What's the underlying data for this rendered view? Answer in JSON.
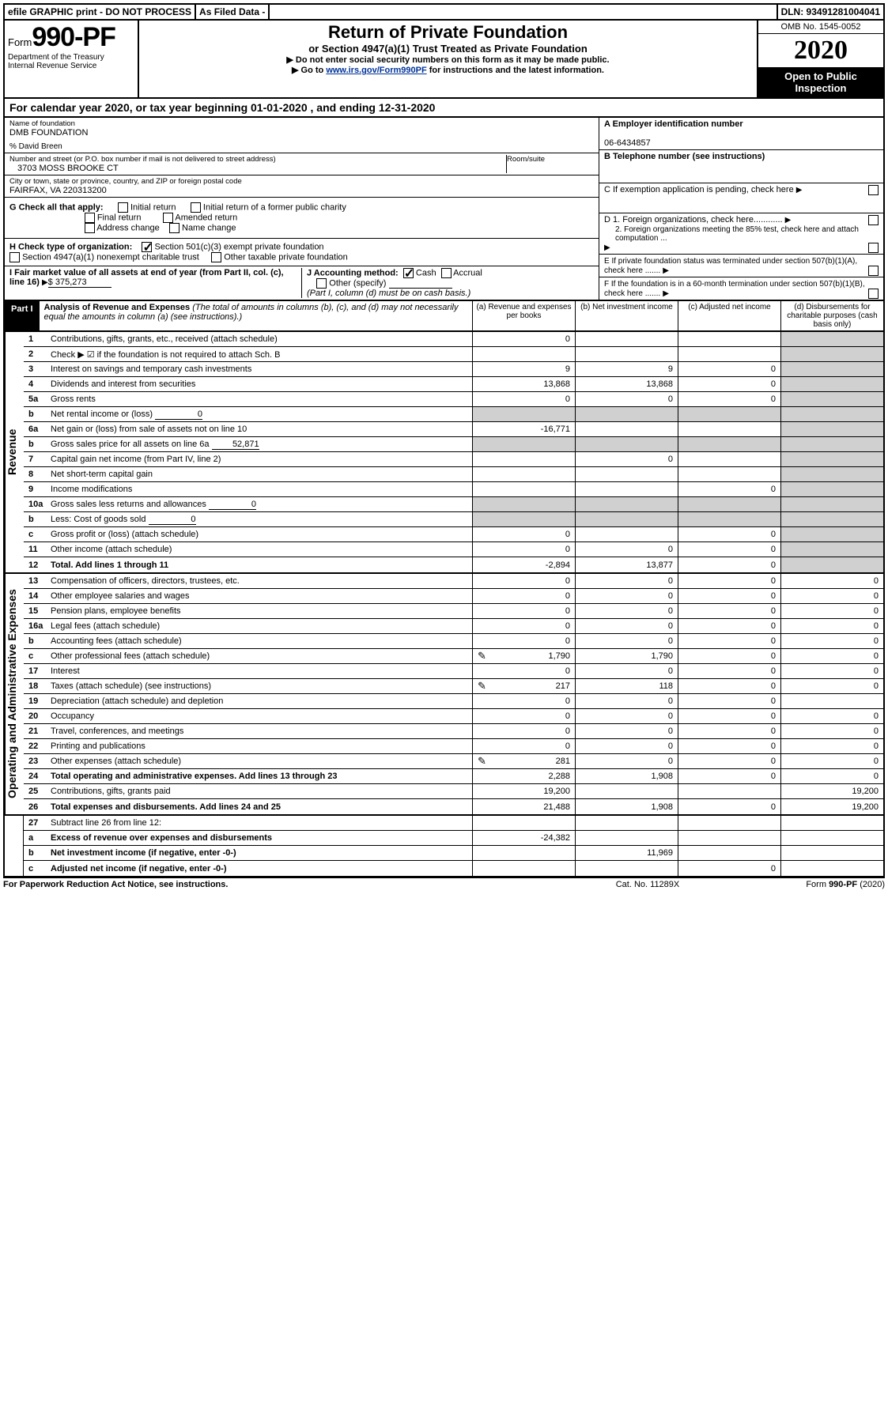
{
  "header_bar": {
    "efile": "efile GRAPHIC print - DO NOT PROCESS",
    "asfiled": "As Filed Data -",
    "dln": "DLN: 93491281004041"
  },
  "top": {
    "form_prefix": "Form",
    "form_no": "990-PF",
    "dept1": "Department of the Treasury",
    "dept2": "Internal Revenue Service",
    "title": "Return of Private Foundation",
    "subtitle": "or Section 4947(a)(1) Trust Treated as Private Foundation",
    "note1": "▶ Do not enter social security numbers on this form as it may be made public.",
    "note2_pre": "▶ Go to ",
    "note2_link": "www.irs.gov/Form990PF",
    "note2_post": " for instructions and the latest information.",
    "omb": "OMB No. 1545-0052",
    "year": "2020",
    "inspect": "Open to Public Inspection"
  },
  "cal": "For calendar year 2020, or tax year beginning 01-01-2020            , and ending 12-31-2020",
  "info": {
    "name_lbl": "Name of foundation",
    "name": "DMB FOUNDATION",
    "co": "% David Breen",
    "addr_lbl": "Number and street (or P.O. box number if mail is not delivered to street address)",
    "addr": "3703 MOSS BROOKE CT",
    "room_lbl": "Room/suite",
    "city_lbl": "City or town, state or province, country, and ZIP or foreign postal code",
    "city": "FAIRFAX, VA  220313200",
    "A_lbl": "A Employer identification number",
    "A_val": "06-6434857",
    "B_lbl": "B Telephone number (see instructions)",
    "C_lbl": "C If exemption application is pending, check here",
    "D1": "D 1. Foreign organizations, check here............",
    "D2": "2. Foreign organizations meeting the 85% test, check here and attach computation ...",
    "E": "E  If private foundation status was terminated under section 507(b)(1)(A), check here .......",
    "F": "F  If the foundation is in a 60-month termination under section 507(b)(1)(B), check here .......",
    "G": "G Check all that apply:",
    "G_initial": "Initial return",
    "G_initial_former": "Initial return of a former public charity",
    "G_final": "Final return",
    "G_amended": "Amended return",
    "G_addr": "Address change",
    "G_name": "Name change",
    "H": "H Check type of organization:",
    "H_501c3": "Section 501(c)(3) exempt private foundation",
    "H_4947": "Section 4947(a)(1) nonexempt charitable trust",
    "H_other": "Other taxable private foundation",
    "I": "I Fair market value of all assets at end of year (from Part II, col. (c), line 16)",
    "I_val": "$  375,273",
    "J": "J Accounting method:",
    "J_cash": "Cash",
    "J_acc": "Accrual",
    "J_other": "Other (specify)",
    "J_note": "(Part I, column (d) must be on cash basis.)"
  },
  "part": {
    "badge": "Part I",
    "title": "Analysis of Revenue and Expenses",
    "note": "(The total of amounts in columns (b), (c), and (d) may not necessarily equal the amounts in column (a) (see instructions).)",
    "colA": "(a)  Revenue and expenses per books",
    "colB": "(b)  Net investment income",
    "colC": "(c)  Adjusted net income",
    "colD": "(d)  Disbursements for charitable purposes (cash basis only)"
  },
  "side_rev": "Revenue",
  "side_exp": "Operating and Administrative Expenses",
  "rows_rev": [
    {
      "n": "1",
      "t": "Contributions, gifts, grants, etc., received (attach schedule)",
      "a": "0"
    },
    {
      "n": "2",
      "t": "Check ▶ ☑ if the foundation is not required to attach Sch. B"
    },
    {
      "n": "3",
      "t": "Interest on savings and temporary cash investments",
      "a": "9",
      "b": "9",
      "c": "0"
    },
    {
      "n": "4",
      "t": "Dividends and interest from securities",
      "a": "13,868",
      "b": "13,868",
      "c": "0"
    },
    {
      "n": "5a",
      "t": "Gross rents",
      "a": "0",
      "b": "0",
      "c": "0"
    },
    {
      "n": "b",
      "t": "Net rental income or (loss)",
      "inline": "0"
    },
    {
      "n": "6a",
      "t": "Net gain or (loss) from sale of assets not on line 10",
      "a": "-16,771"
    },
    {
      "n": "b",
      "t": "Gross sales price for all assets on line 6a",
      "inline": "52,871"
    },
    {
      "n": "7",
      "t": "Capital gain net income (from Part IV, line 2)",
      "b": "0"
    },
    {
      "n": "8",
      "t": "Net short-term capital gain"
    },
    {
      "n": "9",
      "t": "Income modifications",
      "c": "0"
    },
    {
      "n": "10a",
      "t": "Gross sales less returns and allowances",
      "inline": "0"
    },
    {
      "n": "b",
      "t": "Less: Cost of goods sold",
      "inline": "0"
    },
    {
      "n": "c",
      "t": "Gross profit or (loss) (attach schedule)",
      "a": "0",
      "c": "0"
    },
    {
      "n": "11",
      "t": "Other income (attach schedule)",
      "a": "0",
      "b": "0",
      "c": "0"
    },
    {
      "n": "12",
      "t": "Total. Add lines 1 through 11",
      "bold": true,
      "a": "-2,894",
      "b": "13,877",
      "c": "0"
    }
  ],
  "rows_exp": [
    {
      "n": "13",
      "t": "Compensation of officers, directors, trustees, etc.",
      "a": "0",
      "b": "0",
      "c": "0",
      "d": "0"
    },
    {
      "n": "14",
      "t": "Other employee salaries and wages",
      "a": "0",
      "b": "0",
      "c": "0",
      "d": "0"
    },
    {
      "n": "15",
      "t": "Pension plans, employee benefits",
      "a": "0",
      "b": "0",
      "c": "0",
      "d": "0"
    },
    {
      "n": "16a",
      "t": "Legal fees (attach schedule)",
      "a": "0",
      "b": "0",
      "c": "0",
      "d": "0"
    },
    {
      "n": "b",
      "t": "Accounting fees (attach schedule)",
      "a": "0",
      "b": "0",
      "c": "0",
      "d": "0"
    },
    {
      "n": "c",
      "t": "Other professional fees (attach schedule)",
      "pen": true,
      "a": "1,790",
      "b": "1,790",
      "c": "0",
      "d": "0"
    },
    {
      "n": "17",
      "t": "Interest",
      "a": "0",
      "b": "0",
      "c": "0",
      "d": "0"
    },
    {
      "n": "18",
      "t": "Taxes (attach schedule) (see instructions)",
      "pen": true,
      "a": "217",
      "b": "118",
      "c": "0",
      "d": "0"
    },
    {
      "n": "19",
      "t": "Depreciation (attach schedule) and depletion",
      "a": "0",
      "b": "0",
      "c": "0"
    },
    {
      "n": "20",
      "t": "Occupancy",
      "a": "0",
      "b": "0",
      "c": "0",
      "d": "0"
    },
    {
      "n": "21",
      "t": "Travel, conferences, and meetings",
      "a": "0",
      "b": "0",
      "c": "0",
      "d": "0"
    },
    {
      "n": "22",
      "t": "Printing and publications",
      "a": "0",
      "b": "0",
      "c": "0",
      "d": "0"
    },
    {
      "n": "23",
      "t": "Other expenses (attach schedule)",
      "pen": true,
      "a": "281",
      "b": "0",
      "c": "0",
      "d": "0"
    },
    {
      "n": "24",
      "t": "Total operating and administrative expenses. Add lines 13 through 23",
      "bold": true,
      "a": "2,288",
      "b": "1,908",
      "c": "0",
      "d": "0"
    },
    {
      "n": "25",
      "t": "Contributions, gifts, grants paid",
      "a": "19,200",
      "d": "19,200"
    },
    {
      "n": "26",
      "t": "Total expenses and disbursements. Add lines 24 and 25",
      "bold": true,
      "a": "21,488",
      "b": "1,908",
      "c": "0",
      "d": "19,200"
    }
  ],
  "rows_bottom": [
    {
      "n": "27",
      "t": "Subtract line 26 from line 12:"
    },
    {
      "n": "a",
      "t": "Excess of revenue over expenses and disbursements",
      "bold": true,
      "a": "-24,382"
    },
    {
      "n": "b",
      "t": "Net investment income (if negative, enter -0-)",
      "bold": true,
      "b": "11,969"
    },
    {
      "n": "c",
      "t": "Adjusted net income (if negative, enter -0-)",
      "bold": true,
      "c": "0"
    }
  ],
  "footer": {
    "l": "For Paperwork Reduction Act Notice, see instructions.",
    "c": "Cat. No. 11289X",
    "r": "Form 990-PF (2020)"
  }
}
